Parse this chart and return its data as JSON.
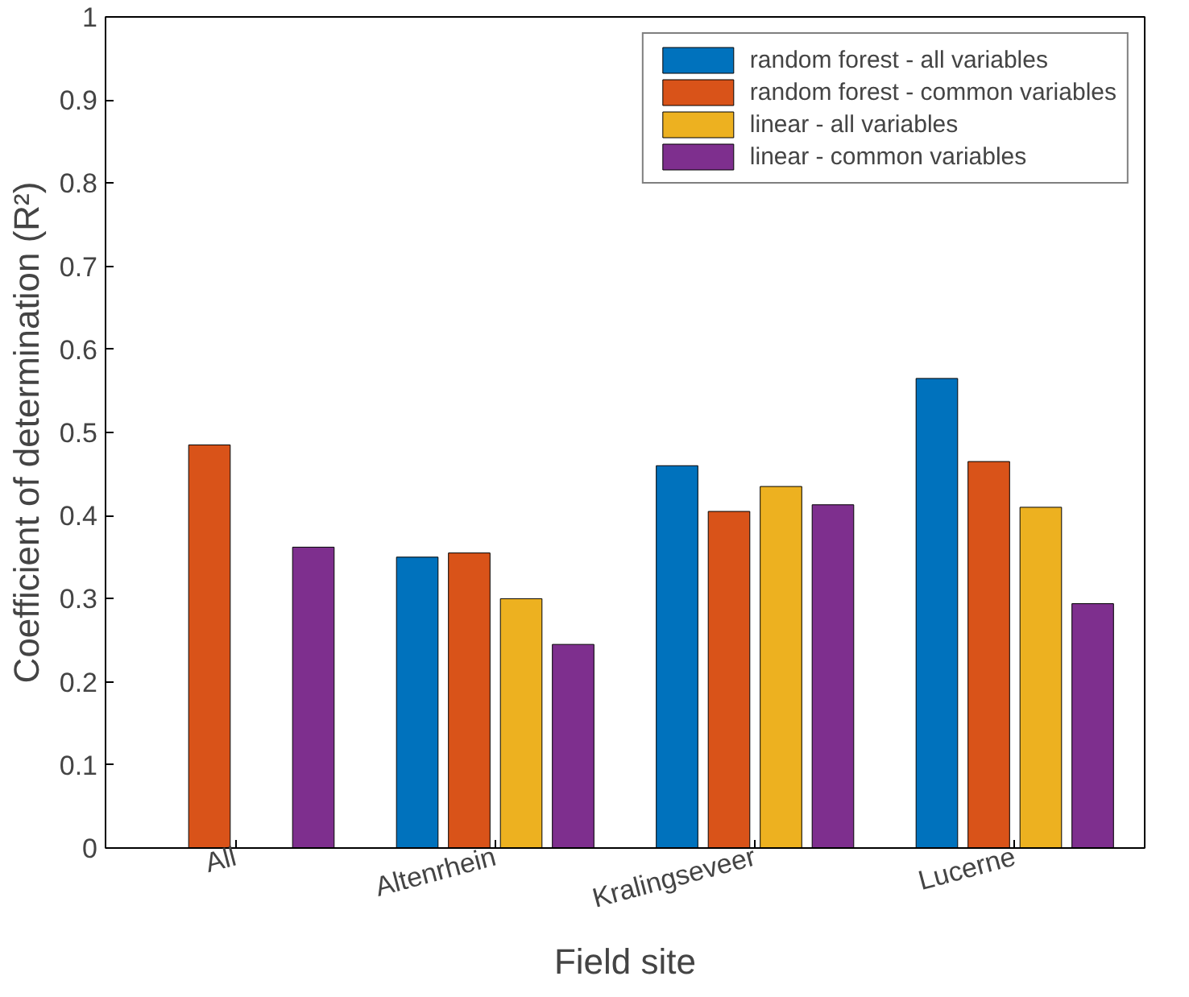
{
  "chart_data": {
    "type": "bar",
    "xlabel": "Field site",
    "ylabel": "Coefficient of determination (R²)",
    "categories": [
      "All",
      "Altenrhein",
      "Kralingseveer",
      "Lucerne"
    ],
    "ylim": [
      0,
      1
    ],
    "yticks": [
      0,
      0.1,
      0.2,
      0.3,
      0.4,
      0.5,
      0.6,
      0.7,
      0.8,
      0.9,
      1
    ],
    "grid": false,
    "legend": "top right",
    "series": [
      {
        "name": "random forest - all variables",
        "color": "#0072bd",
        "values": [
          null,
          0.35,
          0.46,
          0.565
        ]
      },
      {
        "name": "random forest - common variables",
        "color": "#d95319",
        "values": [
          0.485,
          0.355,
          0.405,
          0.465
        ]
      },
      {
        "name": "linear - all variables",
        "color": "#edb120",
        "values": [
          null,
          0.3,
          0.435,
          0.41
        ]
      },
      {
        "name": "linear - common variables",
        "color": "#7e2f8e",
        "values": [
          0.362,
          0.245,
          0.413,
          0.294
        ]
      }
    ]
  }
}
